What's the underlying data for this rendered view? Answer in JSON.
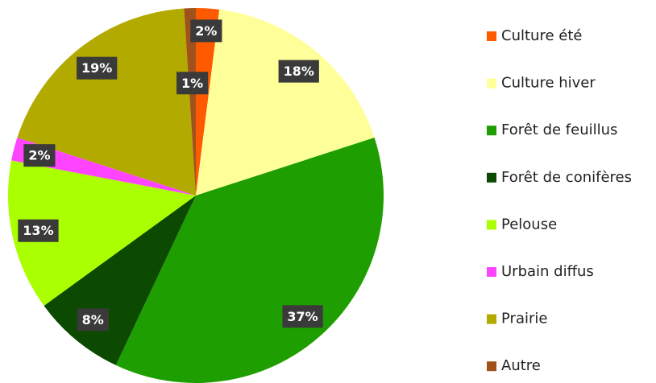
{
  "chart_data": {
    "type": "pie",
    "categories": [
      "Culture été",
      "Culture hiver",
      "Forêt de feuillus",
      "Forêt de conifères",
      "Pelouse",
      "Urbain diffus",
      "Prairie",
      "Autre"
    ],
    "values": [
      2,
      18,
      37,
      8,
      13,
      2,
      19,
      1
    ],
    "value_labels": [
      "2%",
      "18%",
      "37%",
      "8%",
      "13%",
      "2%",
      "19%",
      "1%"
    ],
    "colors": [
      "#ff5a00",
      "#ffff99",
      "#1e9e00",
      "#0b4a00",
      "#aaff00",
      "#ff44ff",
      "#b3aa00",
      "#a0521a"
    ],
    "legend": "right"
  }
}
